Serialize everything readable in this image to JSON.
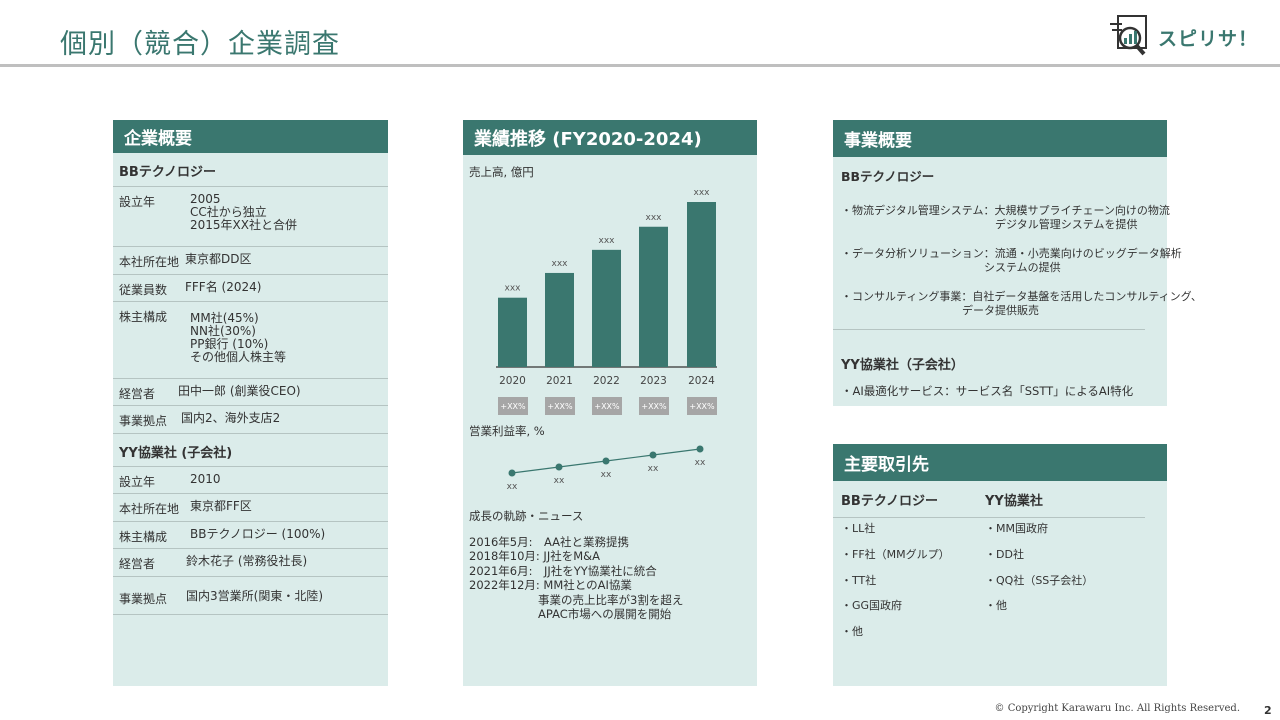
{
  "title": "個別（競合）企業調査",
  "logo": {
    "text": "スピリサ！",
    "icon": "report-magnifier-icon"
  },
  "left": {
    "header": "企業概要",
    "bb": {
      "name": "BBテクノロジー",
      "rows": [
        {
          "k": "設立年",
          "v": "2005\nCC社から独立\n2015年XX社と合併"
        },
        {
          "k": "本社所在地",
          "v": "東京都DD区"
        },
        {
          "k": "従業員数",
          "v": "FFF名 (2024)"
        },
        {
          "k": "株主構成",
          "v": "MM社(45%)\nNN社(30%)\nPP銀行 (10%)\nその他個人株主等"
        },
        {
          "k": "経営者",
          "v": "田中一郎 (創業役CEO)"
        },
        {
          "k": "事業拠点",
          "v": "国内2、海外支店2"
        }
      ]
    },
    "yy": {
      "name": "YY協業社 (子会社)",
      "rows": [
        {
          "k": "設立年",
          "v": "2010"
        },
        {
          "k": "本社所在地",
          "v": "東京都FF区"
        },
        {
          "k": "株主構成",
          "v": "BBテクノロジー (100%)"
        },
        {
          "k": "経営者",
          "v": "鈴木花子 (常務役社長)"
        },
        {
          "k": "事業拠点",
          "v": "国内3営業所(関東・北陸)"
        }
      ]
    }
  },
  "middle": {
    "header": "業績推移 (FY2020-2024)",
    "sales_label": "売上高, 億円",
    "margin_label": "営業利益率, %",
    "news_label": "成長の軌跡・ニュース",
    "news": [
      "2016年5月:　AA社と業務提携",
      "2018年10月: JJ社をM&A",
      "2021年6月:　JJ社をYY協業社に統合",
      "2022年12月: MM社とのAI協業",
      "　　　　　　事業の売上比率が3割を超え",
      "　　　　　　APAC市場への展開を開始"
    ]
  },
  "chart_data": [
    {
      "type": "bar",
      "title": "売上高, 億円",
      "categories": [
        "2020",
        "2021",
        "2022",
        "2023",
        "2024"
      ],
      "values": [
        0.42,
        0.57,
        0.71,
        0.85,
        1.0
      ],
      "data_labels": [
        "xxx",
        "xxx",
        "xxx",
        "xxx",
        "xxx"
      ],
      "growth_labels": [
        "+XX%",
        "+XX%",
        "+XX%",
        "+XX%",
        "+XX%"
      ],
      "color": "#3a776f"
    },
    {
      "type": "line",
      "title": "営業利益率, %",
      "categories": [
        "2020",
        "2021",
        "2022",
        "2023",
        "2024"
      ],
      "values": [
        0,
        0.25,
        0.5,
        0.75,
        1.0
      ],
      "data_labels": [
        "xx",
        "xx",
        "xx",
        "xx",
        "xx"
      ],
      "color": "#3a776f"
    }
  ],
  "right": {
    "header": "事業概要",
    "bb_name": "BBテクノロジー",
    "bb_items": [
      "・物流デジタル管理システム：大規模サプライチェーン向けの物流\n　　　　　　　　　　　　　　デジタル管理システムを提供",
      "・データ分析ソリューション：流通・小売業向けのビッグデータ解析\n　　　　　　　　　　　　　システムの提供",
      "・コンサルティング事業：自社データ基盤を活用したコンサルティング、\n　　　　　　　　　　　データ提供販売"
    ],
    "yy_name": "YY協業社（子会社）",
    "yy_items": [
      "・AI最適化サービス：サービス名「SSTT」によるAI特化"
    ]
  },
  "clients": {
    "header": "主要取引先",
    "bb": {
      "name": "BBテクノロジー",
      "items": [
        "・LL社",
        "・FF社（MMグルプ）",
        "・TT社",
        "・GG国政府",
        "・他"
      ]
    },
    "yy": {
      "name": "YY協業社",
      "items": [
        "・MM国政府",
        "・DD社",
        "・QQ社（SS子会社）",
        "・他"
      ]
    }
  },
  "footer": {
    "copyright": "© Copyright Karawaru Inc. All Rights Reserved.",
    "page": "2"
  }
}
